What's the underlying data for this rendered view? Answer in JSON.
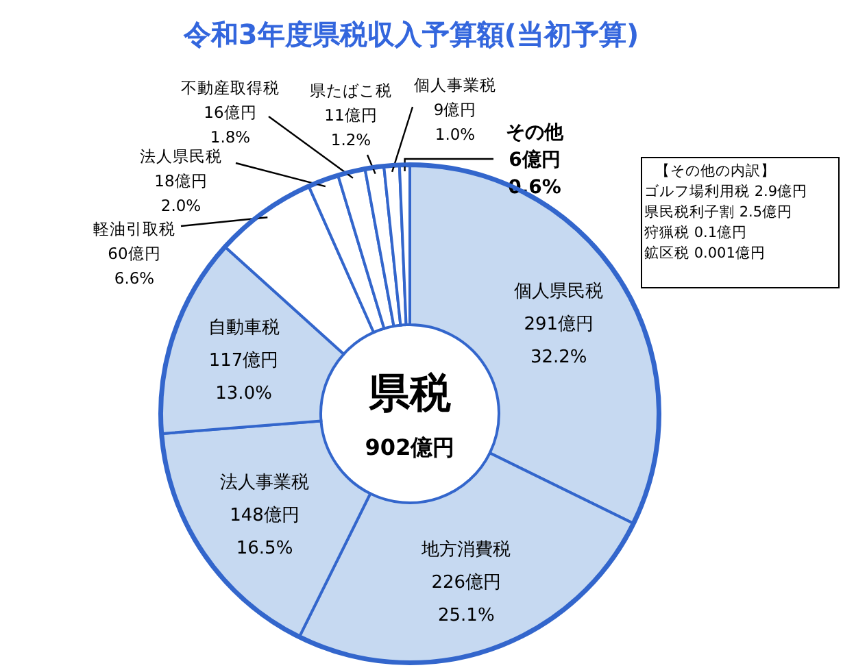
{
  "chart_data": {
    "type": "donut",
    "title": "令和3年度県税収入予算額(当初予算)",
    "categories": [
      "個人県民税",
      "地方消費税",
      "法人事業税",
      "自動車税",
      "軽油引取税",
      "法人県民税",
      "不動産取得税",
      "県たばこ税",
      "個人事業税",
      "その他"
    ],
    "values": [
      291,
      226,
      148,
      117,
      60,
      18,
      16,
      11,
      9,
      6
    ],
    "colors": [
      "#c6d9f1",
      "#c6d9f1",
      "#c6d9f1",
      "#c6d9f1",
      "#ffffff",
      "#ffffff",
      "#ffffff",
      "#ffffff",
      "#ffffff",
      "#ffffff"
    ],
    "value_labels": [
      "291億円\n32.2%",
      "226億円\n25.1%",
      "148億円\n16.5%",
      "117億円\n13.0%",
      "60億円\n6.6%",
      "18億円\n2.0%",
      "16億円\n1.8%",
      "11億円\n1.2%",
      "9億円\n1.0%",
      "6億円\n0.6%"
    ],
    "annotations": [
      "県税",
      "902億円",
      "【その他の内訳】",
      "ゴルフ場利用税 2.9億円",
      "県民税利子割 2.5億円",
      "狩猟税 0.1億円",
      "鉱区税 0.001億円"
    ]
  }
}
